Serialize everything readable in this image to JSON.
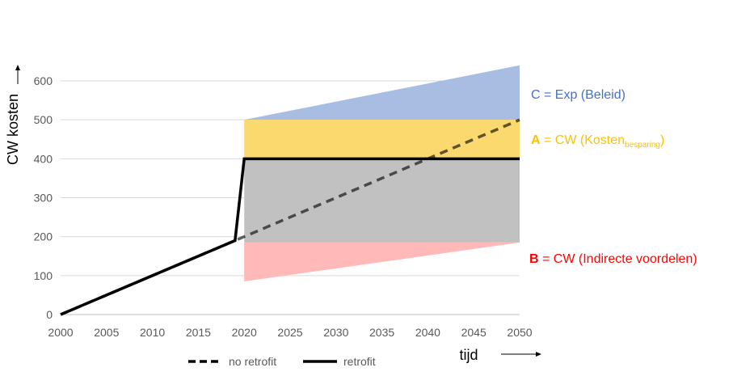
{
  "chart_data": {
    "type": "line",
    "title": "",
    "xlabel": "tijd",
    "ylabel": "CW kosten",
    "xlim": [
      2000,
      2050
    ],
    "ylim": [
      0,
      600
    ],
    "x_ticks": [
      2000,
      2005,
      2010,
      2015,
      2020,
      2025,
      2030,
      2035,
      2040,
      2045,
      2050
    ],
    "y_ticks": [
      0,
      100,
      200,
      300,
      400,
      500,
      600
    ],
    "grid": "horizontal",
    "legend_position": "bottom",
    "series": [
      {
        "name": "no retrofit",
        "style": "dashed",
        "color": "#000000",
        "points": [
          [
            2000,
            0
          ],
          [
            2019,
            190
          ],
          [
            2050,
            500
          ]
        ]
      },
      {
        "name": "retrofit",
        "style": "solid",
        "color": "#000000",
        "points": [
          [
            2000,
            0
          ],
          [
            2019,
            190
          ],
          [
            2020,
            400
          ],
          [
            2050,
            400
          ]
        ]
      }
    ],
    "areas": [
      {
        "id": "C",
        "color": "#a9bde3",
        "polygon": [
          [
            2020,
            500
          ],
          [
            2050,
            640
          ],
          [
            2050,
            500
          ]
        ]
      },
      {
        "id": "A",
        "color": "#fbd96f",
        "polygon": [
          [
            2020,
            500
          ],
          [
            2050,
            500
          ],
          [
            2050,
            400
          ],
          [
            2020,
            400
          ]
        ]
      },
      {
        "id": "grey",
        "color": "#c1c1c1",
        "polygon": [
          [
            2020,
            400
          ],
          [
            2050,
            400
          ],
          [
            2050,
            185
          ],
          [
            2020,
            185
          ]
        ]
      },
      {
        "id": "B",
        "color": "#ffb9b9",
        "polygon": [
          [
            2020,
            185
          ],
          [
            2050,
            185
          ],
          [
            2020,
            85
          ]
        ]
      }
    ],
    "annotations": [
      {
        "id": "C",
        "prefix": "",
        "text": "C = Exp (Beleid)",
        "sub": "",
        "suffix": "",
        "color": "#4472c4"
      },
      {
        "id": "A",
        "prefix": "A",
        "text": " = CW (Kosten",
        "sub": "besparing",
        "suffix": ")",
        "color": "#ffc000"
      },
      {
        "id": "B",
        "prefix": "B",
        "text": " = CW (Indirecte voordelen)",
        "sub": "",
        "suffix": "",
        "color": "#ff0000"
      }
    ]
  }
}
